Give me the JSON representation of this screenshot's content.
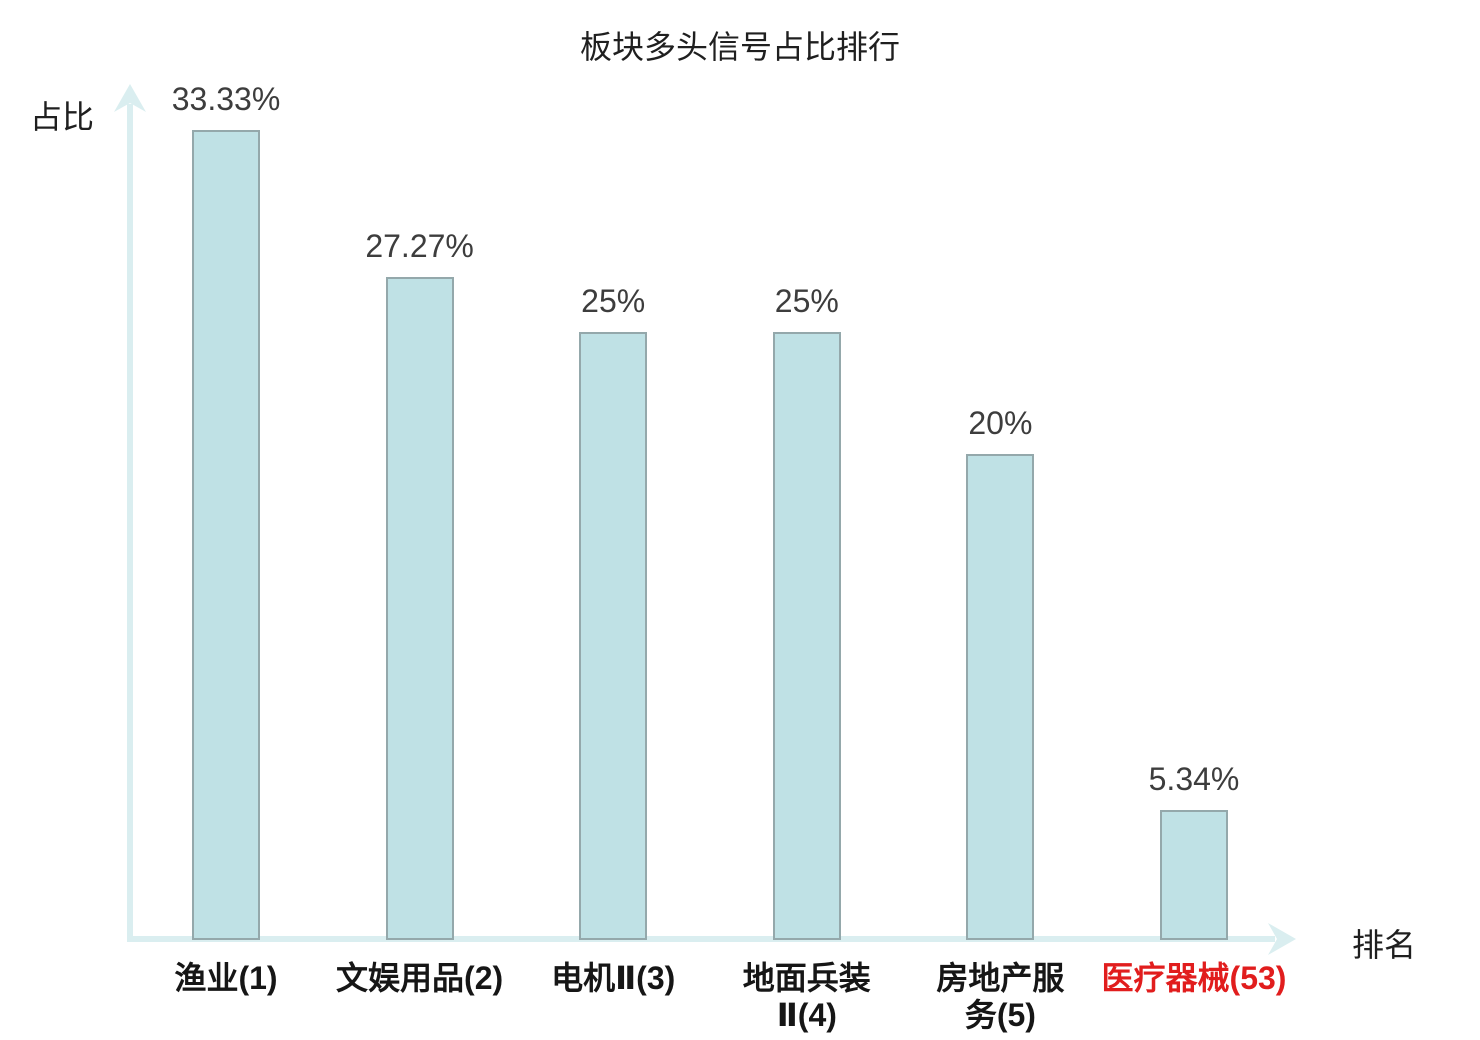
{
  "title": "板块多头信号占比排行",
  "y_axis_label": "占比",
  "x_axis_label": "排名",
  "colors": {
    "title": "#1f1f1f",
    "axis": "#daeef0",
    "bar_fill": "#bfe1e5",
    "bar_border": "#94a8ab",
    "value_label": "#3d3d3d",
    "category_label": "#161616",
    "highlight": "#e11d1d"
  },
  "chart_data": {
    "type": "bar",
    "title": "板块多头信号占比排行",
    "xlabel": "排名",
    "ylabel": "占比",
    "categories": [
      "渔业(1)",
      "文娱用品(2)",
      "电机Ⅱ(3)",
      "地面兵装\nⅡ(4)",
      "房地产服\n务(5)",
      "医疗器械(53)"
    ],
    "values": [
      33.33,
      27.27,
      25,
      25,
      20,
      5.34
    ],
    "value_labels": [
      "33.33%",
      "27.27%",
      "25%",
      "25%",
      "20%",
      "5.34%"
    ],
    "highlighted_category_index": 5,
    "highlight_reason_color": "#e11d1d",
    "ylim": [
      0,
      34.5
    ],
    "grid": false,
    "legend": null,
    "bar_label_position": "top"
  }
}
